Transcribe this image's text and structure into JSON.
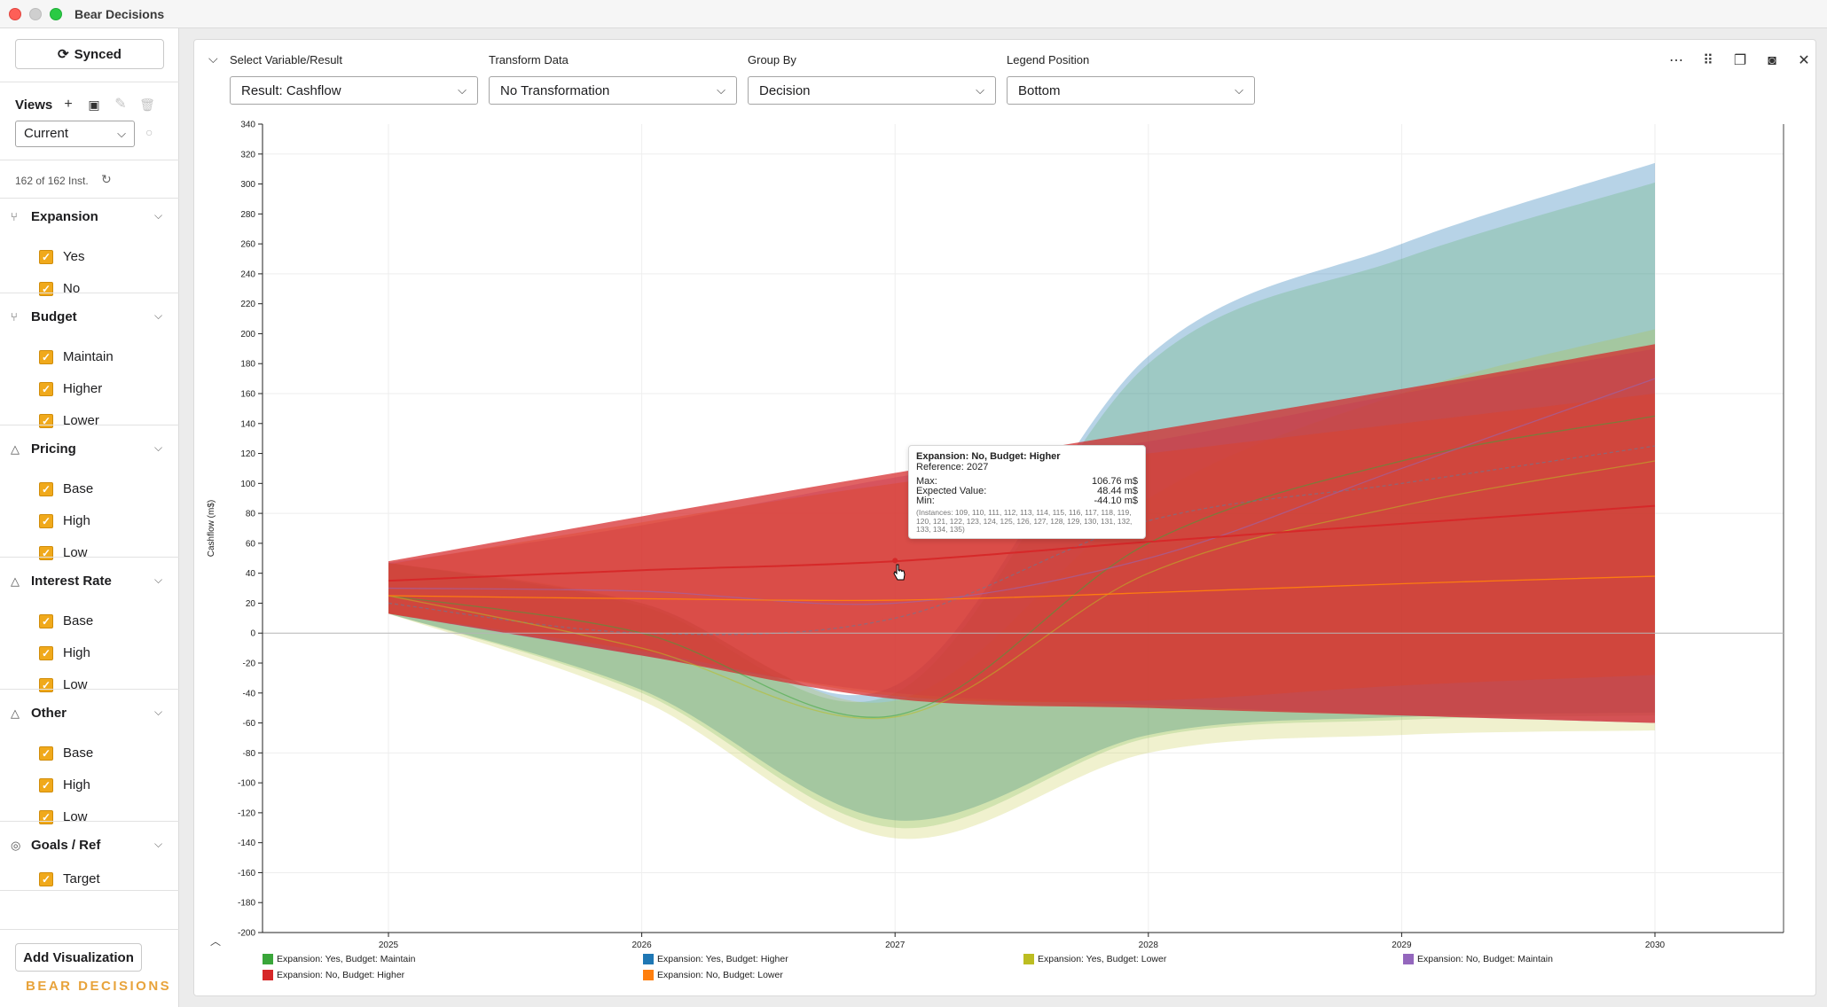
{
  "app": {
    "title": "Bear Decisions"
  },
  "sidebar": {
    "sync_label": "Synced",
    "views_label": "Views",
    "view_selected": "Current",
    "instances_text": "162 of 162 Inst.",
    "groups": [
      {
        "title": "Expansion",
        "icon": "branch-icon",
        "options": [
          "Yes",
          "No"
        ]
      },
      {
        "title": "Budget",
        "icon": "branch-icon",
        "options": [
          "Maintain",
          "Higher",
          "Lower"
        ]
      },
      {
        "title": "Pricing",
        "icon": "warning-icon",
        "options": [
          "Base",
          "High",
          "Low"
        ]
      },
      {
        "title": "Interest Rate",
        "icon": "warning-icon",
        "options": [
          "Base",
          "High",
          "Low"
        ]
      },
      {
        "title": "Other",
        "icon": "warning-icon",
        "options": [
          "Base",
          "High",
          "Low"
        ]
      },
      {
        "title": "Goals / Ref",
        "icon": "target-icon",
        "options": [
          "Target"
        ]
      }
    ],
    "add_visualization_label": "Add Visualization",
    "brand_text": "BEAR DECISIONS"
  },
  "controls": {
    "variable": {
      "label": "Select Variable/Result",
      "value": "Result: Cashflow"
    },
    "transform": {
      "label": "Transform Data",
      "value": "No Transformation"
    },
    "group_by": {
      "label": "Group By",
      "value": "Decision"
    },
    "legend_position": {
      "label": "Legend Position",
      "value": "Bottom"
    }
  },
  "tooltip": {
    "title": "Expansion: No, Budget: Higher",
    "reference": "Reference: 2027",
    "max_label": "Max:",
    "max_value": "106.76 m$",
    "ev_label": "Expected Value:",
    "ev_value": "48.44 m$",
    "min_label": "Min:",
    "min_value": "-44.10 m$",
    "instances": "(Instances: 109, 110, 111, 112, 113, 114, 115, 116, 117, 118, 119, 120, 121, 122, 123, 124, 125, 126, 127, 128, 129, 130, 131, 132, 133, 134, 135)"
  },
  "colors": {
    "accent": "#f0a91b",
    "green": "#3aa63a",
    "blue": "#1f77b4",
    "olive": "#bcbd22",
    "purple": "#9467bd",
    "red": "#d62728",
    "orange": "#ff7f0e"
  },
  "chart_data": {
    "type": "area",
    "ylabel": "Cashflow (m$)",
    "xlabel": "",
    "x": [
      2025,
      2026,
      2027,
      2028,
      2029,
      2030
    ],
    "ylim": [
      -200,
      340
    ],
    "yticks": [
      340,
      320,
      300,
      280,
      260,
      240,
      220,
      200,
      180,
      160,
      140,
      120,
      100,
      80,
      60,
      40,
      20,
      0,
      -20,
      -40,
      -60,
      -80,
      -100,
      -120,
      -140,
      -160,
      -180,
      -200
    ],
    "legend_position": "bottom",
    "series": [
      {
        "name": "Expansion: Yes, Budget: Maintain",
        "color": "#3aa63a",
        "max": [
          47,
          18,
          -40,
          180,
          250,
          301
        ],
        "min": [
          13,
          -40,
          -130,
          -70,
          -58,
          -55
        ],
        "expected": [
          25,
          0,
          -55,
          60,
          115,
          145
        ]
      },
      {
        "name": "Expansion: Yes, Budget: Higher",
        "color": "#1f77b4",
        "max": [
          47,
          20,
          -35,
          185,
          260,
          314
        ],
        "min": [
          13,
          -38,
          -125,
          -68,
          -56,
          -53
        ],
        "expected": [
          20,
          0,
          10,
          75,
          100,
          125
        ]
      },
      {
        "name": "Expansion: Yes, Budget: Lower",
        "color": "#bcbd22",
        "max": [
          47,
          20,
          -45,
          90,
          160,
          203
        ],
        "min": [
          13,
          -45,
          -137,
          -80,
          -68,
          -65
        ],
        "expected": [
          25,
          -10,
          -56,
          40,
          85,
          115
        ]
      },
      {
        "name": "Expansion: No, Budget: Maintain",
        "color": "#9467bd",
        "max": [
          47,
          72,
          104,
          128,
          160,
          190
        ],
        "min": [
          13,
          -15,
          -40,
          -48,
          -55,
          -60
        ],
        "expected": [
          30,
          28,
          20,
          50,
          110,
          170
        ]
      },
      {
        "name": "Expansion: No, Budget: Higher",
        "color": "#d62728",
        "max": [
          48,
          78,
          107,
          135,
          163,
          193
        ],
        "min": [
          13,
          -15,
          -44,
          -50,
          -55,
          -60
        ],
        "expected": [
          35,
          42,
          48,
          61,
          73,
          85
        ]
      },
      {
        "name": "Expansion: No, Budget: Lower",
        "color": "#ff7f0e",
        "max": [
          46,
          74,
          100,
          120,
          140,
          160
        ],
        "min": [
          13,
          -12,
          -42,
          -45,
          -35,
          -28
        ],
        "expected": [
          25,
          23,
          22,
          27,
          33,
          38
        ]
      }
    ]
  }
}
